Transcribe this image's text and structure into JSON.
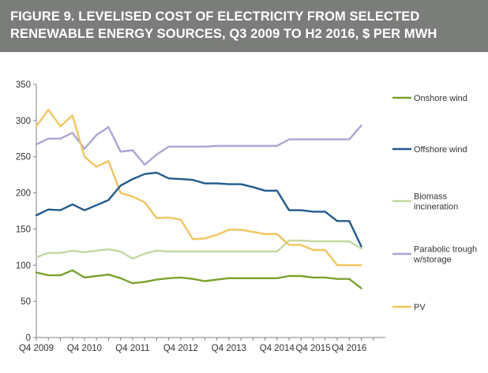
{
  "figure": {
    "title_line1": "FIGURE 9. LEVELISED COST OF ELECTRICITY FROM SELECTED",
    "title_line2": "RENEWABLE ENERGY SOURCES, Q3 2009 TO H2 2016, $ PER MWH"
  },
  "chart_data": {
    "type": "line",
    "title": "FIGURE 9. LEVELISED COST OF ELECTRICITY FROM SELECTED RENEWABLE ENERGY SOURCES, Q3 2009 TO H2 2016, $ PER MWH",
    "xlabel": "",
    "ylabel": "",
    "ylim": [
      0,
      350
    ],
    "yticks": [
      0,
      50,
      100,
      150,
      200,
      250,
      300,
      350
    ],
    "xlim": [
      0,
      29
    ],
    "xticks": [
      {
        "x": 0,
        "label": "Q4 2009"
      },
      {
        "x": 4,
        "label": "Q4 2010"
      },
      {
        "x": 8,
        "label": "Q4 2011"
      },
      {
        "x": 12,
        "label": "Q4 2012"
      },
      {
        "x": 16,
        "label": "Q4 2013"
      },
      {
        "x": 20,
        "label": "Q4 2014"
      },
      {
        "x": 23,
        "label": "Q4 2015"
      },
      {
        "x": 26,
        "label": "Q4 2016"
      }
    ],
    "legend_position": "right",
    "series": [
      {
        "name": "Onshore wind",
        "color": "#7aa22c",
        "x": [
          0,
          1,
          2,
          3,
          4,
          5,
          6,
          7,
          8,
          9,
          10,
          11,
          12,
          13,
          14,
          15,
          16,
          17,
          18,
          19,
          20,
          21,
          22,
          23,
          24,
          25,
          26,
          27
        ],
        "values": [
          90,
          86,
          86,
          93,
          83,
          85,
          87,
          82,
          75,
          77,
          80,
          82,
          83,
          81,
          78,
          80,
          82,
          82,
          82,
          82,
          82,
          85,
          85,
          83,
          83,
          81,
          81,
          68
        ]
      },
      {
        "name": "Offshore wind",
        "color": "#1f5b8e",
        "x": [
          0,
          1,
          2,
          3,
          4,
          5,
          6,
          7,
          8,
          9,
          10,
          11,
          12,
          13,
          14,
          15,
          16,
          17,
          18,
          19,
          20,
          21,
          22,
          23,
          24,
          25,
          26,
          27
        ],
        "values": [
          169,
          177,
          176,
          184,
          176,
          183,
          190,
          210,
          219,
          226,
          228,
          220,
          219,
          218,
          213,
          213,
          212,
          212,
          208,
          203,
          203,
          176,
          176,
          174,
          174,
          161,
          161,
          126
        ]
      },
      {
        "name": "Biomass incineration",
        "color": "#c4d89e",
        "x": [
          0,
          1,
          2,
          3,
          4,
          5,
          6,
          7,
          8,
          9,
          10,
          11,
          12,
          13,
          14,
          15,
          16,
          17,
          18,
          19,
          20,
          21,
          22,
          23,
          24,
          25,
          26,
          27
        ],
        "values": [
          111,
          117,
          117,
          120,
          118,
          120,
          122,
          119,
          109,
          116,
          120,
          119,
          119,
          119,
          119,
          119,
          119,
          119,
          119,
          119,
          119,
          134,
          134,
          133,
          133,
          133,
          133,
          123
        ]
      },
      {
        "name": "Parabolic trough w/storage",
        "color": "#a8a6d4",
        "x": [
          0,
          1,
          2,
          3,
          4,
          5,
          6,
          7,
          8,
          9,
          10,
          11,
          12,
          13,
          14,
          15,
          16,
          17,
          18,
          19,
          20,
          21,
          22,
          23,
          24,
          25,
          26,
          27
        ],
        "values": [
          267,
          275,
          275,
          283,
          261,
          280,
          291,
          257,
          259,
          239,
          253,
          264,
          264,
          264,
          264,
          265,
          265,
          265,
          265,
          265,
          265,
          274,
          274,
          274,
          274,
          274,
          274,
          293
        ]
      },
      {
        "name": "PV",
        "color": "#f2c55c",
        "x": [
          0,
          1,
          2,
          3,
          4,
          5,
          6,
          7,
          8,
          9,
          10,
          11,
          12,
          13,
          14,
          15,
          16,
          17,
          18,
          19,
          20,
          21,
          22,
          23,
          24,
          25,
          26,
          27
        ],
        "values": [
          292,
          315,
          292,
          307,
          250,
          236,
          244,
          200,
          195,
          187,
          165,
          166,
          163,
          136,
          137,
          142,
          149,
          149,
          146,
          143,
          143,
          128,
          128,
          121,
          121,
          100,
          100,
          100
        ]
      }
    ]
  }
}
